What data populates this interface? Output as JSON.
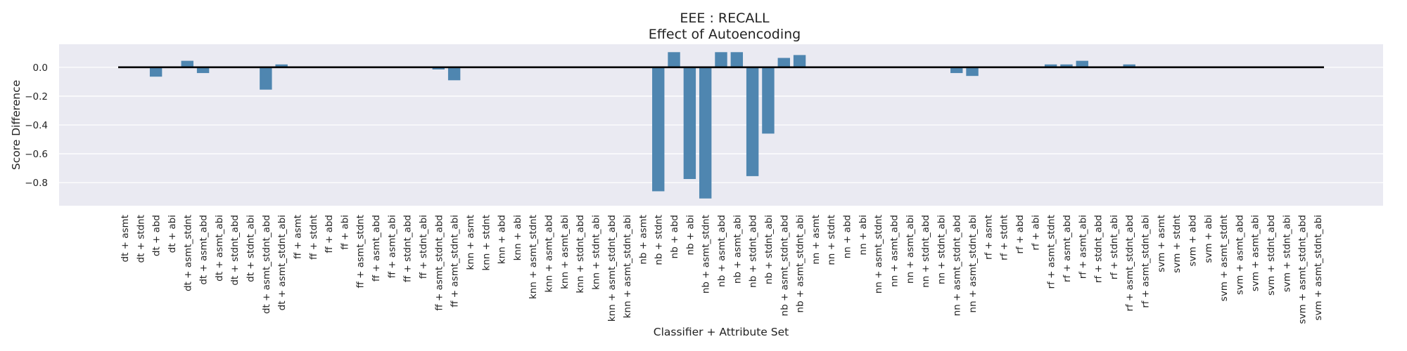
{
  "chart_data": {
    "type": "bar",
    "title": "EEE : RECALL",
    "subtitle": "Effect of Autoencoding",
    "xlabel": "Classifier + Attribute Set",
    "ylabel": "Score Difference",
    "ylim": [
      -0.96,
      0.16
    ],
    "yticks": [
      0.0,
      -0.2,
      -0.4,
      -0.6,
      -0.8
    ],
    "ytick_labels": [
      "0.0",
      "−0.2",
      "−0.4",
      "−0.6",
      "−0.8"
    ],
    "grid": true,
    "legend": "none",
    "colors": {
      "bar": "#4f86b0",
      "background": "#eaeaf2",
      "grid": "#ffffff",
      "zero_line": "#000000",
      "text": "#222222"
    },
    "categories": [
      "dt + asmt",
      "dt + stdnt",
      "dt + abd",
      "dt + abi",
      "dt + asmt_stdnt",
      "dt + asmt_abd",
      "dt + asmt_abi",
      "dt + stdnt_abd",
      "dt + stdnt_abi",
      "dt + asmt_stdnt_abd",
      "dt + asmt_stdnt_abi",
      "ff + asmt",
      "ff + stdnt",
      "ff + abd",
      "ff + abi",
      "ff + asmt_stdnt",
      "ff + asmt_abd",
      "ff + asmt_abi",
      "ff + stdnt_abd",
      "ff + stdnt_abi",
      "ff + asmt_stdnt_abd",
      "ff + asmt_stdnt_abi",
      "knn + asmt",
      "knn + stdnt",
      "knn + abd",
      "knn + abi",
      "knn + asmt_stdnt",
      "knn + asmt_abd",
      "knn + asmt_abi",
      "knn + stdnt_abd",
      "knn + stdnt_abi",
      "knn + asmt_stdnt_abd",
      "knn + asmt_stdnt_abi",
      "nb + asmt",
      "nb + stdnt",
      "nb + abd",
      "nb + abi",
      "nb + asmt_stdnt",
      "nb + asmt_abd",
      "nb + asmt_abi",
      "nb + stdnt_abd",
      "nb + stdnt_abi",
      "nb + asmt_stdnt_abd",
      "nb + asmt_stdnt_abi",
      "nn + asmt",
      "nn + stdnt",
      "nn + abd",
      "nn + abi",
      "nn + asmt_stdnt",
      "nn + asmt_abd",
      "nn + asmt_abi",
      "nn + stdnt_abd",
      "nn + stdnt_abi",
      "nn + asmt_stdnt_abd",
      "nn + asmt_stdnt_abi",
      "rf + asmt",
      "rf + stdnt",
      "rf + abd",
      "rf + abi",
      "rf + asmt_stdnt",
      "rf + asmt_abd",
      "rf + asmt_abi",
      "rf + stdnt_abd",
      "rf + stdnt_abi",
      "rf + asmt_stdnt_abd",
      "rf + asmt_stdnt_abi",
      "svm + asmt",
      "svm + stdnt",
      "svm + abd",
      "svm + abi",
      "svm + asmt_stdnt",
      "svm + asmt_abd",
      "svm + asmt_abi",
      "svm + stdnt_abd",
      "svm + stdnt_abi",
      "svm + asmt_stdnt_abd",
      "svm + asmt_stdnt_abi"
    ],
    "values": [
      0.0,
      0.0,
      -0.065,
      0.0,
      0.045,
      -0.04,
      0.0,
      0.0,
      0.0,
      -0.155,
      0.02,
      0.0,
      0.0,
      0.0,
      0.0,
      0.0,
      0.0,
      0.0,
      0.0,
      0.0,
      -0.015,
      -0.09,
      0.0,
      0.0,
      0.0,
      0.0,
      0.0,
      0.0,
      0.0,
      0.0,
      0.0,
      0.0,
      0.0,
      0.0,
      -0.86,
      0.105,
      -0.775,
      -0.91,
      0.105,
      0.105,
      -0.755,
      -0.46,
      0.065,
      0.085,
      0.0,
      0.0,
      0.0,
      0.0,
      0.0,
      0.0,
      0.0,
      0.0,
      0.0,
      -0.04,
      -0.06,
      0.0,
      0.0,
      0.0,
      0.0,
      0.02,
      0.02,
      0.045,
      0.0,
      0.0,
      0.02,
      0.0,
      0.0,
      0.0,
      0.0,
      0.0,
      0.0,
      0.0,
      0.0,
      0.0,
      0.0,
      0.0,
      0.0
    ]
  }
}
